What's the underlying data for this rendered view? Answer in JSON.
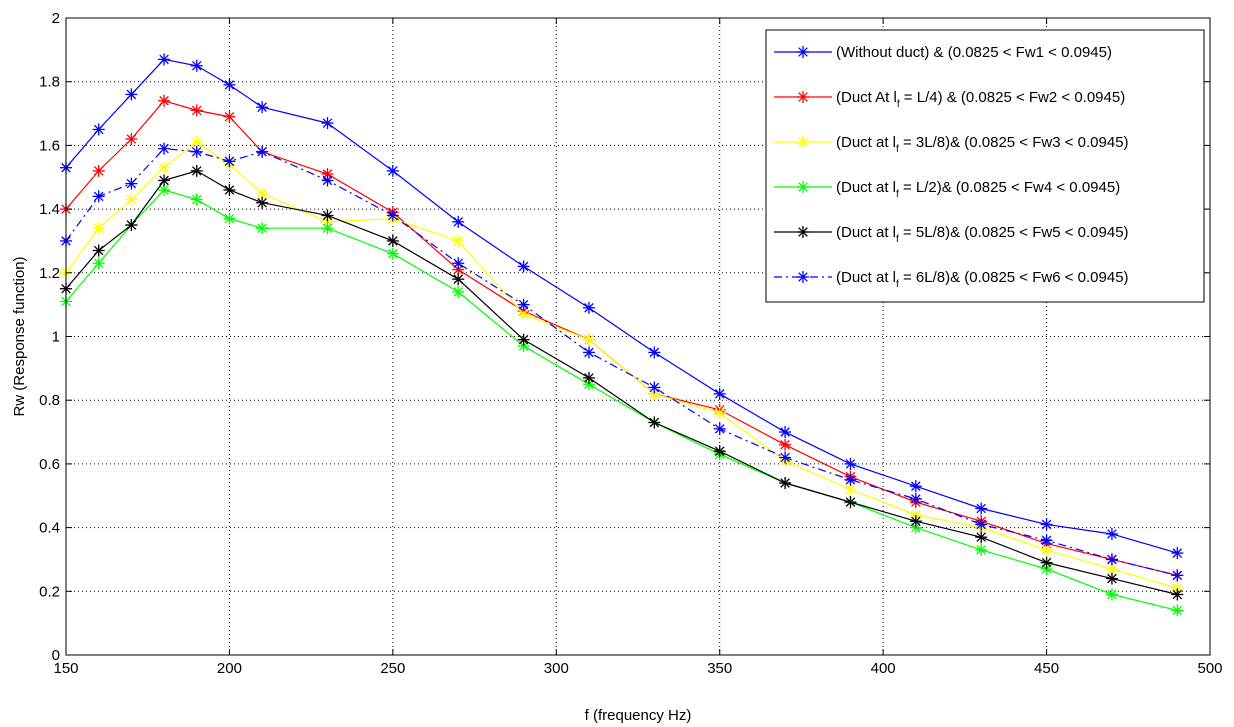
{
  "chart_data": {
    "type": "line",
    "xlabel": "f (frequency Hz)",
    "ylabel": "Rw (Response function)",
    "xlim": [
      150,
      500
    ],
    "ylim": [
      0,
      2
    ],
    "xticks": [
      150,
      200,
      250,
      300,
      350,
      400,
      450,
      500
    ],
    "yticks": [
      0,
      0.2,
      0.4,
      0.6,
      0.8,
      1,
      1.2,
      1.4,
      1.6,
      1.8,
      2
    ],
    "xtick_labels": [
      "150",
      "200",
      "250",
      "300",
      "350",
      "400",
      "450",
      "500"
    ],
    "ytick_labels": [
      "0",
      "0.2",
      "0.4",
      "0.6",
      "0.8",
      "1",
      "1.2",
      "1.4",
      "1.6",
      "1.8",
      "2"
    ],
    "grid": true,
    "legend_position": "top-right",
    "x": [
      150,
      160,
      170,
      180,
      190,
      200,
      210,
      230,
      250,
      270,
      290,
      310,
      330,
      350,
      370,
      390,
      410,
      430,
      450,
      470,
      490
    ],
    "series": [
      {
        "legend_pre": "(Without duct) & (0.0825 < Fw1 < 0.0945)",
        "legend_sub": "",
        "legend_post": "",
        "color": "#0000ff",
        "dash": "solid",
        "values": [
          1.53,
          1.65,
          1.76,
          1.87,
          1.85,
          1.79,
          1.72,
          1.67,
          1.52,
          1.36,
          1.22,
          1.09,
          0.95,
          0.82,
          0.7,
          0.6,
          0.53,
          0.46,
          0.41,
          0.38,
          0.32
        ]
      },
      {
        "legend_pre": "(Duct At l",
        "legend_sub": "f",
        "legend_post": " = L/4) & (0.0825 < Fw2 < 0.0945)",
        "color": "#ff0000",
        "dash": "solid",
        "values": [
          1.4,
          1.52,
          1.62,
          1.74,
          1.71,
          1.69,
          1.58,
          1.51,
          1.39,
          1.21,
          1.08,
          0.99,
          0.82,
          0.77,
          0.66,
          0.56,
          0.48,
          0.42,
          0.35,
          0.3,
          0.25
        ]
      },
      {
        "legend_pre": "(Duct at l",
        "legend_sub": "f",
        "legend_post": " = 3L/8)& (0.0825 < Fw3 < 0.0945)",
        "color": "#ffff00",
        "dash": "solid",
        "values": [
          1.2,
          1.34,
          1.43,
          1.53,
          1.61,
          1.54,
          1.45,
          1.36,
          1.37,
          1.3,
          1.07,
          0.99,
          0.82,
          0.76,
          0.61,
          0.52,
          0.44,
          0.4,
          0.33,
          0.27,
          0.21
        ]
      },
      {
        "legend_pre": "(Duct at l",
        "legend_sub": "f",
        "legend_post": " = L/2)& (0.0825 < Fw4 < 0.0945)",
        "color": "#00ff00",
        "dash": "solid",
        "values": [
          1.11,
          1.23,
          1.35,
          1.46,
          1.43,
          1.37,
          1.34,
          1.34,
          1.26,
          1.14,
          0.97,
          0.85,
          0.73,
          0.63,
          0.54,
          0.48,
          0.4,
          0.33,
          0.27,
          0.19,
          0.14
        ]
      },
      {
        "legend_pre": "(Duct at l",
        "legend_sub": "f",
        "legend_post": " = 5L/8)& (0.0825 < Fw5 < 0.0945)",
        "color": "#000000",
        "dash": "solid",
        "values": [
          1.15,
          1.27,
          1.35,
          1.49,
          1.52,
          1.46,
          1.42,
          1.38,
          1.3,
          1.18,
          0.99,
          0.87,
          0.73,
          0.64,
          0.54,
          0.48,
          0.42,
          0.37,
          0.29,
          0.24,
          0.19
        ]
      },
      {
        "legend_pre": "(Duct at l",
        "legend_sub": "f",
        "legend_post": " = 6L/8)& (0.0825 < Fw6 < 0.0945)",
        "color": "#0000ff",
        "dash": "dashdot",
        "values": [
          1.3,
          1.44,
          1.48,
          1.59,
          1.58,
          1.55,
          1.58,
          1.49,
          1.38,
          1.23,
          1.1,
          0.95,
          0.84,
          0.71,
          0.62,
          0.55,
          0.49,
          0.41,
          0.36,
          0.3,
          0.25
        ]
      }
    ]
  }
}
